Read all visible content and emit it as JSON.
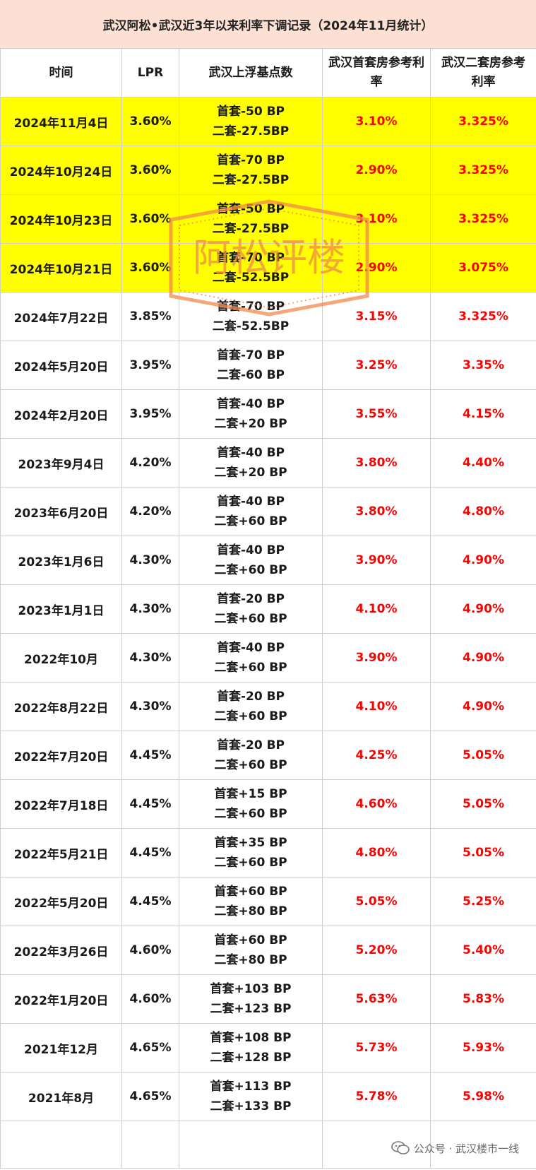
{
  "title": "武汉阿松•武汉近3年以来利率下调记录（2024年11月统计）",
  "headers": [
    "时间",
    "LPR",
    "武汉上浮基点数",
    "武汉首套房参考利率",
    "武汉二套房参考利率"
  ],
  "rows": [
    {
      "date": "2024年11月4日",
      "lpr": "3.60%",
      "bp1": "首套-50 BP",
      "bp2": "二套-27.5BP",
      "first": "3.10%",
      "second": "3.325%",
      "highlight": true
    },
    {
      "date": "2024年10月24日",
      "lpr": "3.60%",
      "bp1": "首套-70 BP",
      "bp2": "二套-27.5BP",
      "first": "2.90%",
      "second": "3.325%",
      "highlight": true
    },
    {
      "date": "2024年10月23日",
      "lpr": "3.60%",
      "bp1": "首套-50 BP",
      "bp2": "二套-27.5BP",
      "first": "3.10%",
      "second": "3.325%",
      "highlight": true
    },
    {
      "date": "2024年10月21日",
      "lpr": "3.60%",
      "bp1": "首套-70 BP",
      "bp2": "二套-52.5BP",
      "first": "2.90%",
      "second": "3.075%",
      "highlight": true
    },
    {
      "date": "2024年7月22日",
      "lpr": "3.85%",
      "bp1": "首套-70 BP",
      "bp2": "二套-52.5BP",
      "first": "3.15%",
      "second": "3.325%",
      "highlight": false
    },
    {
      "date": "2024年5月20日",
      "lpr": "3.95%",
      "bp1": "首套-70 BP",
      "bp2": "二套-60 BP",
      "first": "3.25%",
      "second": "3.35%",
      "highlight": false
    },
    {
      "date": "2024年2月20日",
      "lpr": "3.95%",
      "bp1": "首套-40 BP",
      "bp2": "二套+20 BP",
      "first": "3.55%",
      "second": "4.15%",
      "highlight": false
    },
    {
      "date": "2023年9月4日",
      "lpr": "4.20%",
      "bp1": "首套-40 BP",
      "bp2": "二套+20 BP",
      "first": "3.80%",
      "second": "4.40%",
      "highlight": false
    },
    {
      "date": "2023年6月20日",
      "lpr": "4.20%",
      "bp1": "首套-40 BP",
      "bp2": "二套+60 BP",
      "first": "3.80%",
      "second": "4.80%",
      "highlight": false
    },
    {
      "date": "2023年1月6日",
      "lpr": "4.30%",
      "bp1": "首套-40 BP",
      "bp2": "二套+60 BP",
      "first": "3.90%",
      "second": "4.90%",
      "highlight": false
    },
    {
      "date": "2023年1月1日",
      "lpr": "4.30%",
      "bp1": "首套-20 BP",
      "bp2": "二套+60 BP",
      "first": "4.10%",
      "second": "4.90%",
      "highlight": false
    },
    {
      "date": "2022年10月",
      "lpr": "4.30%",
      "bp1": "首套-40 BP",
      "bp2": "二套+60 BP",
      "first": "3.90%",
      "second": "4.90%",
      "highlight": false
    },
    {
      "date": "2022年8月22日",
      "lpr": "4.30%",
      "bp1": "首套-20 BP",
      "bp2": "二套+60 BP",
      "first": "4.10%",
      "second": "4.90%",
      "highlight": false
    },
    {
      "date": "2022年7月20日",
      "lpr": "4.45%",
      "bp1": "首套-20 BP",
      "bp2": "二套+60 BP",
      "first": "4.25%",
      "second": "5.05%",
      "highlight": false
    },
    {
      "date": "2022年7月18日",
      "lpr": "4.45%",
      "bp1": "首套+15 BP",
      "bp2": "二套+60 BP",
      "first": "4.60%",
      "second": "5.05%",
      "highlight": false
    },
    {
      "date": "2022年5月21日",
      "lpr": "4.45%",
      "bp1": "首套+35 BP",
      "bp2": "二套+60 BP",
      "first": "4.80%",
      "second": "5.05%",
      "highlight": false
    },
    {
      "date": "2022年5月20日",
      "lpr": "4.45%",
      "bp1": "首套+60 BP",
      "bp2": "二套+80 BP",
      "first": "5.05%",
      "second": "5.25%",
      "highlight": false
    },
    {
      "date": "2022年3月26日",
      "lpr": "4.60%",
      "bp1": "首套+60 BP",
      "bp2": "二套+80 BP",
      "first": "5.20%",
      "second": "5.40%",
      "highlight": false
    },
    {
      "date": "2022年1月20日",
      "lpr": "4.60%",
      "bp1": "首套+103 BP",
      "bp2": "二套+123 BP",
      "first": "5.63%",
      "second": "5.83%",
      "highlight": false
    },
    {
      "date": "2021年12月",
      "lpr": "4.65%",
      "bp1": "首套+108 BP",
      "bp2": "二套+128 BP",
      "first": "5.73%",
      "second": "5.93%",
      "highlight": false
    },
    {
      "date": "2021年8月",
      "lpr": "4.65%",
      "bp1": "首套+113 BP",
      "bp2": "二套+133 BP",
      "first": "5.78%",
      "second": "5.98%",
      "highlight": false
    }
  ],
  "watermark": {
    "text": "阿松评楼",
    "color": "#f08a4b"
  },
  "footer": {
    "icon": "wechat-icon",
    "text": "公众号 · 武汉楼市一线"
  },
  "colors": {
    "highlight": "#ffff00",
    "rate_text": "#ff0000",
    "title_bg": "#fde0d4"
  }
}
